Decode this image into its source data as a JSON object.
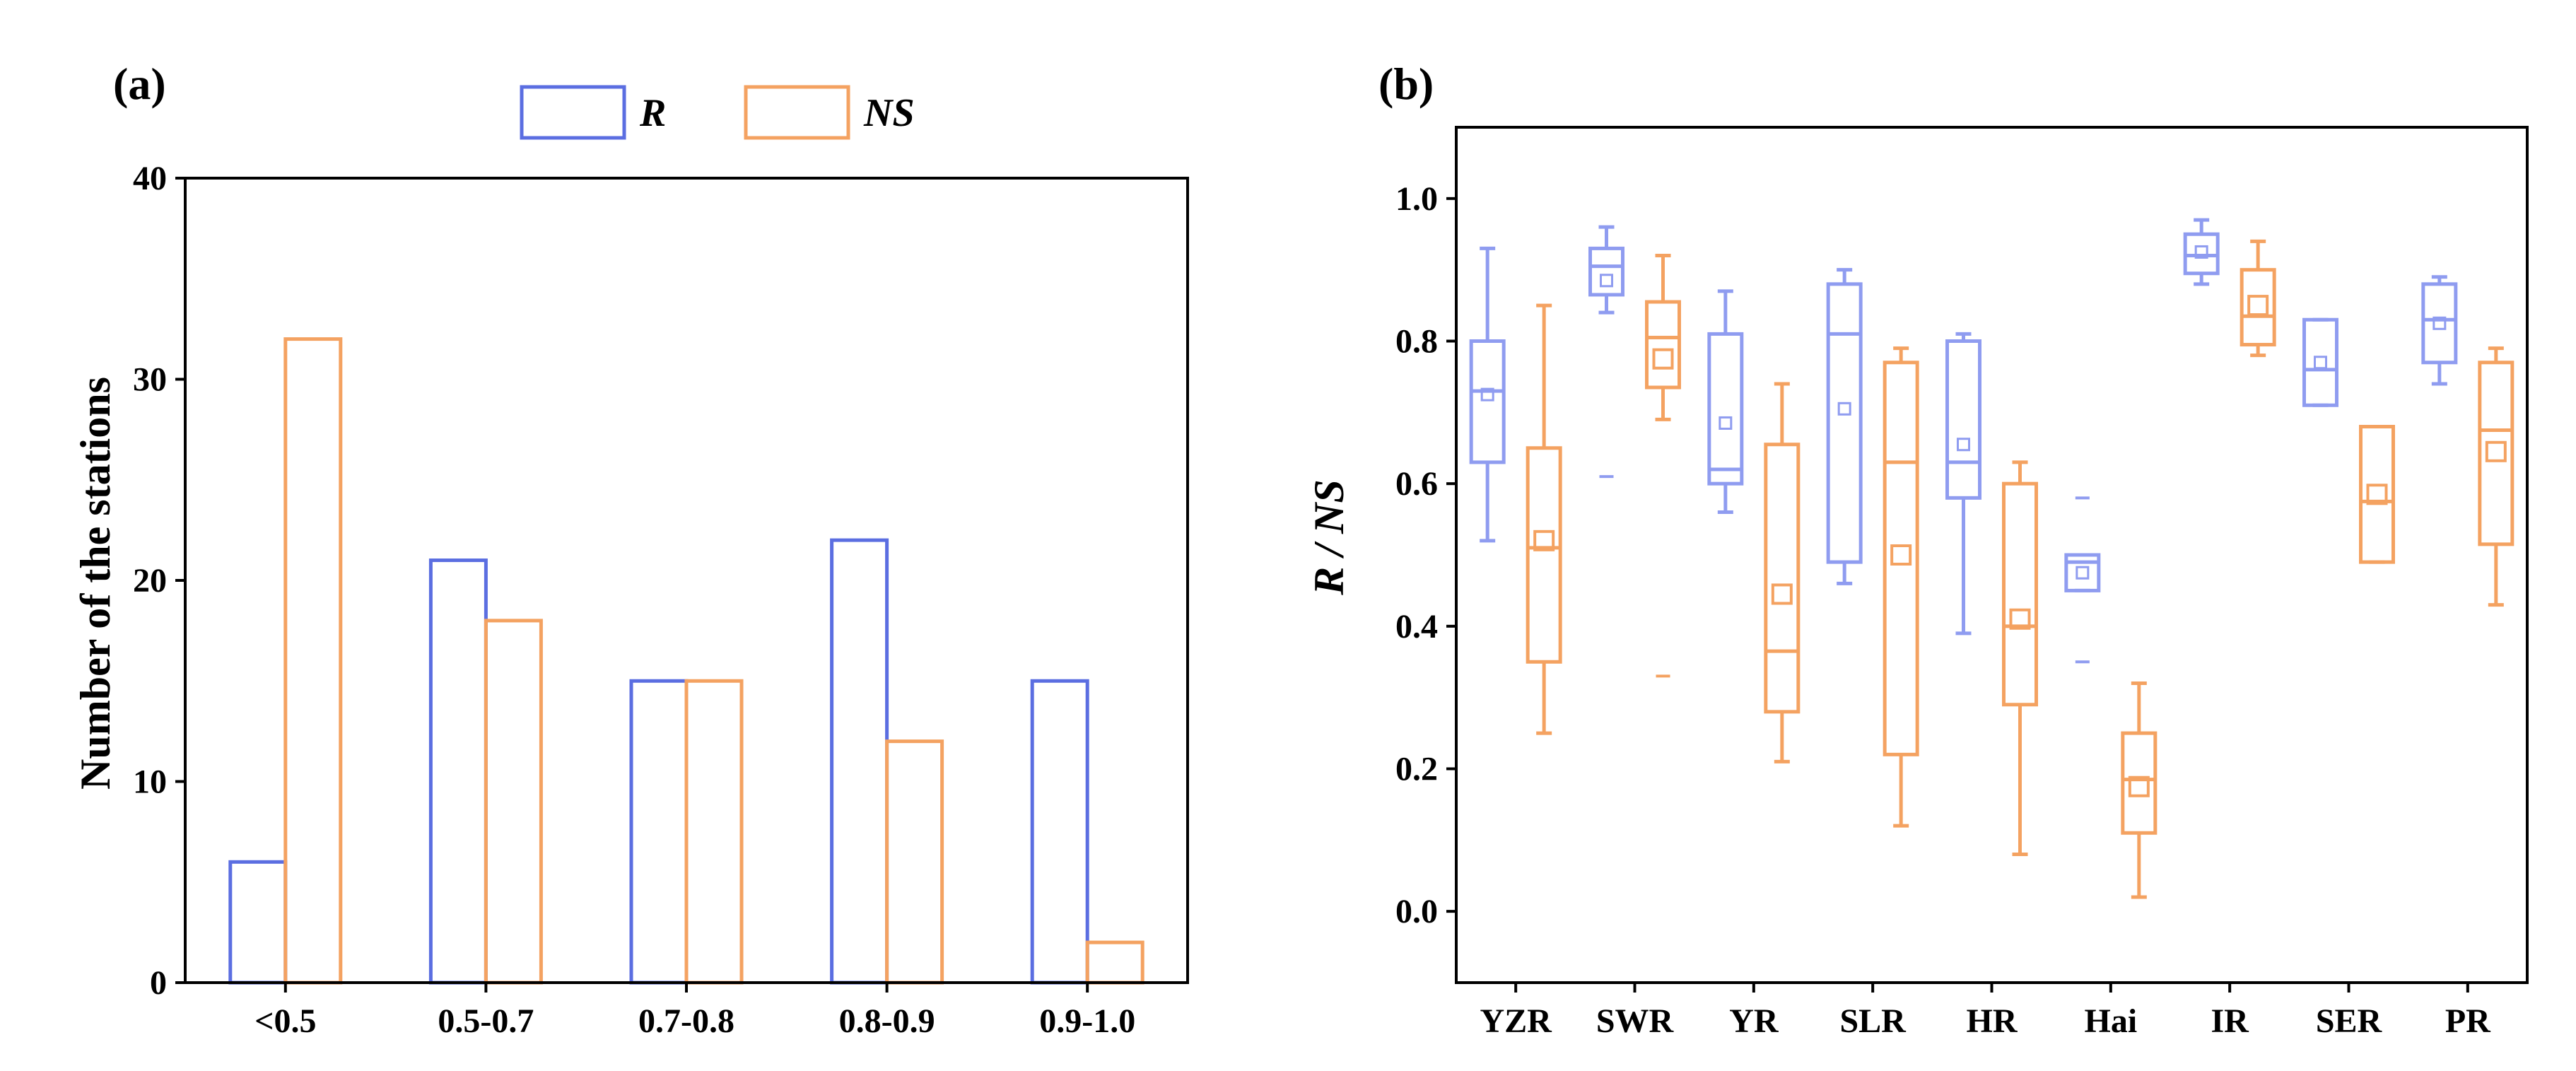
{
  "chart_data": [
    {
      "panel": "(a)",
      "type": "bar",
      "title": "",
      "xlabel": "",
      "ylabel": "Number of the stations",
      "ylim": [
        0,
        40
      ],
      "yticks": [
        "0",
        "10",
        "20",
        "30",
        "40"
      ],
      "categories": [
        "<0.5",
        "0.5-0.7",
        "0.7-0.8",
        "0.8-0.9",
        "0.9-1.0"
      ],
      "legend_position": "top-center",
      "series": [
        {
          "name": "R",
          "color": "#5b6ee1",
          "values": [
            6,
            21,
            15,
            22,
            15
          ]
        },
        {
          "name": "NS",
          "color": "#f4a261",
          "values": [
            32,
            18,
            15,
            12,
            2
          ]
        }
      ]
    },
    {
      "panel": "(b)",
      "type": "box",
      "title": "",
      "xlabel": "",
      "ylabel": "R / NS",
      "ylim": [
        -0.1,
        1.1
      ],
      "yticks": [
        "0.0",
        "0.2",
        "0.4",
        "0.6",
        "0.8",
        "1.0"
      ],
      "categories": [
        "YZR",
        "SWR",
        "YR",
        "SLR",
        "HR",
        "Hai",
        "IR",
        "SER",
        "PR"
      ],
      "series": [
        {
          "name": "R",
          "color": "#8f9cf0",
          "boxes": [
            {
              "whisker_low": 0.52,
              "q1": 0.63,
              "median": 0.73,
              "q3": 0.8,
              "whisker_high": 0.93,
              "mean": 0.725,
              "outliers": []
            },
            {
              "whisker_low": 0.84,
              "q1": 0.865,
              "median": 0.905,
              "q3": 0.93,
              "whisker_high": 0.96,
              "mean": 0.885,
              "outliers": [
                0.61
              ]
            },
            {
              "whisker_low": 0.56,
              "q1": 0.6,
              "median": 0.62,
              "q3": 0.81,
              "whisker_high": 0.87,
              "mean": 0.685,
              "outliers": []
            },
            {
              "whisker_low": 0.46,
              "q1": 0.49,
              "median": 0.81,
              "q3": 0.88,
              "whisker_high": 0.9,
              "mean": 0.705,
              "outliers": []
            },
            {
              "whisker_low": 0.39,
              "q1": 0.58,
              "median": 0.63,
              "q3": 0.8,
              "whisker_high": 0.81,
              "mean": 0.655,
              "outliers": []
            },
            {
              "whisker_low": 0.45,
              "q1": 0.45,
              "median": 0.49,
              "q3": 0.5,
              "whisker_high": 0.5,
              "mean": 0.475,
              "outliers": [
                0.58,
                0.35
              ]
            },
            {
              "whisker_low": 0.88,
              "q1": 0.895,
              "median": 0.92,
              "q3": 0.95,
              "whisker_high": 0.97,
              "mean": 0.925,
              "outliers": []
            },
            {
              "whisker_low": 0.71,
              "q1": 0.71,
              "median": 0.76,
              "q3": 0.83,
              "whisker_high": 0.83,
              "mean": 0.77,
              "outliers": []
            },
            {
              "whisker_low": 0.74,
              "q1": 0.77,
              "median": 0.83,
              "q3": 0.88,
              "whisker_high": 0.89,
              "mean": 0.825,
              "outliers": []
            }
          ]
        },
        {
          "name": "NS",
          "color": "#f4a261",
          "boxes": [
            {
              "whisker_low": 0.25,
              "q1": 0.35,
              "median": 0.51,
              "q3": 0.65,
              "whisker_high": 0.85,
              "mean": 0.52,
              "outliers": []
            },
            {
              "whisker_low": 0.69,
              "q1": 0.735,
              "median": 0.805,
              "q3": 0.855,
              "whisker_high": 0.92,
              "mean": 0.775,
              "outliers": [
                0.33
              ]
            },
            {
              "whisker_low": 0.21,
              "q1": 0.28,
              "median": 0.365,
              "q3": 0.655,
              "whisker_high": 0.74,
              "mean": 0.445,
              "outliers": []
            },
            {
              "whisker_low": 0.12,
              "q1": 0.22,
              "median": 0.63,
              "q3": 0.77,
              "whisker_high": 0.79,
              "mean": 0.5,
              "outliers": []
            },
            {
              "whisker_low": 0.08,
              "q1": 0.29,
              "median": 0.4,
              "q3": 0.6,
              "whisker_high": 0.63,
              "mean": 0.41,
              "outliers": []
            },
            {
              "whisker_low": 0.02,
              "q1": 0.11,
              "median": 0.185,
              "q3": 0.25,
              "whisker_high": 0.32,
              "mean": 0.175,
              "outliers": []
            },
            {
              "whisker_low": 0.78,
              "q1": 0.795,
              "median": 0.835,
              "q3": 0.9,
              "whisker_high": 0.94,
              "mean": 0.85,
              "outliers": []
            },
            {
              "whisker_low": 0.49,
              "q1": 0.49,
              "median": 0.575,
              "q3": 0.68,
              "whisker_high": 0.68,
              "mean": 0.585,
              "outliers": []
            },
            {
              "whisker_low": 0.43,
              "q1": 0.515,
              "median": 0.675,
              "q3": 0.77,
              "whisker_high": 0.79,
              "mean": 0.645,
              "outliers": []
            }
          ]
        }
      ]
    }
  ]
}
